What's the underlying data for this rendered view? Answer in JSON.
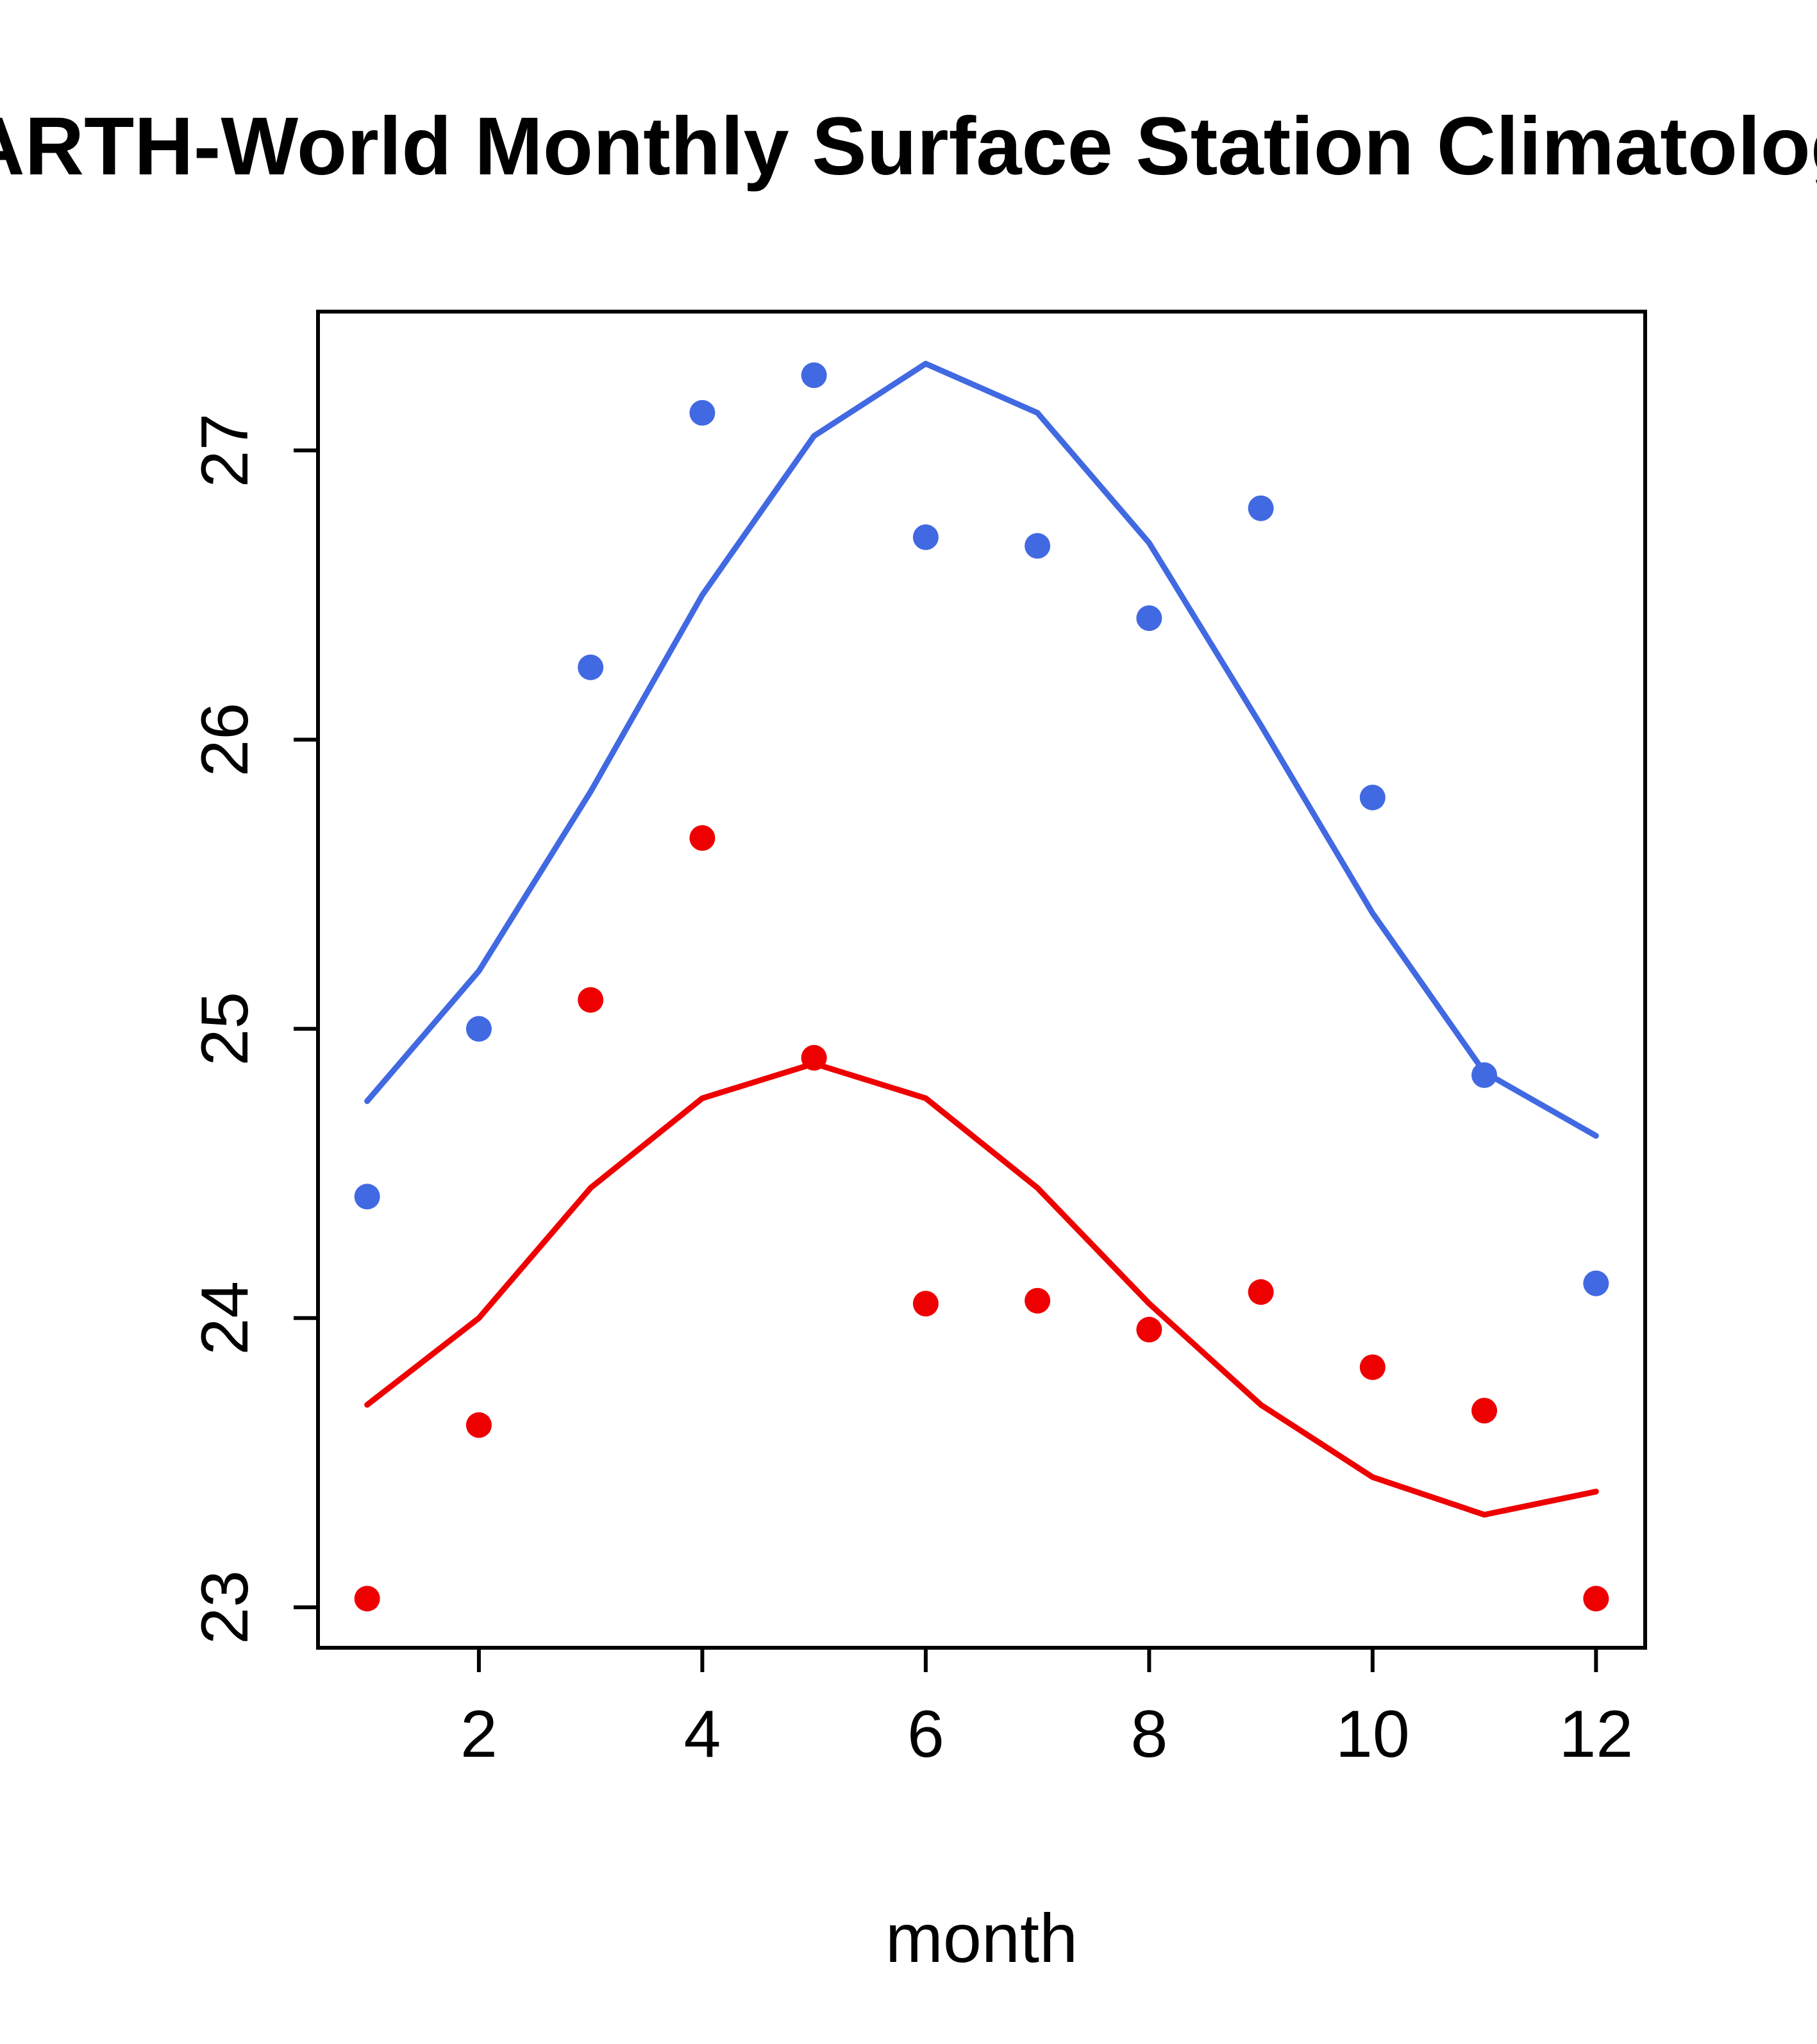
{
  "chart_data": {
    "type": "line",
    "title": "EARTH-World Monthly Surface Station Climatology",
    "xlabel": "month",
    "ylabel": "",
    "x": [
      1,
      2,
      3,
      4,
      5,
      6,
      7,
      8,
      9,
      10,
      11,
      12
    ],
    "x_ticks": [
      2,
      4,
      6,
      8,
      10,
      12
    ],
    "y_ticks": [
      23,
      24,
      25,
      26,
      27
    ],
    "xlim": [
      0.56,
      12.44
    ],
    "ylim": [
      22.86,
      27.48
    ],
    "grid": false,
    "legend": "none",
    "colors": {
      "blue": "#4169e1",
      "red": "#ee0000"
    },
    "series": [
      {
        "name": "blue-line-smoothed",
        "kind": "line",
        "color": "#4169e1",
        "values": [
          24.75,
          25.2,
          25.82,
          26.5,
          27.05,
          27.3,
          27.13,
          26.68,
          26.05,
          25.4,
          24.85,
          24.63
        ]
      },
      {
        "name": "blue-points-monthly",
        "kind": "points",
        "color": "#4169e1",
        "values": [
          24.42,
          25.0,
          26.25,
          27.13,
          27.26,
          26.7,
          26.67,
          26.42,
          26.8,
          25.8,
          24.84,
          24.12
        ]
      },
      {
        "name": "red-line-smoothed",
        "kind": "line",
        "color": "#ee0000",
        "values": [
          23.7,
          24.0,
          24.45,
          24.76,
          24.88,
          24.76,
          24.45,
          24.05,
          23.7,
          23.45,
          23.32,
          23.4
        ]
      },
      {
        "name": "red-points-monthly",
        "kind": "points",
        "color": "#ee0000",
        "values": [
          23.03,
          23.63,
          25.1,
          25.66,
          24.9,
          24.05,
          24.06,
          23.96,
          24.09,
          23.83,
          23.68,
          23.03
        ]
      }
    ]
  }
}
